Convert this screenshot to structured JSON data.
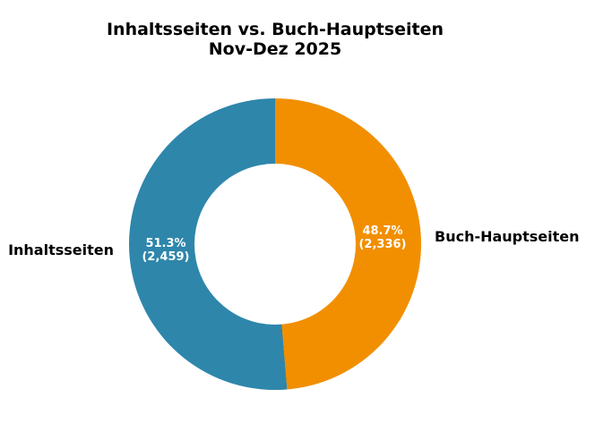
{
  "colors": {
    "background": "#ffffff",
    "title_text": "#000000",
    "slice_label_text": "#000000",
    "inner_value_text": "#ffffff"
  },
  "chart_data": {
    "type": "pie",
    "style": "donut",
    "title": "Inhaltsseiten vs. Buch-Hauptseiten",
    "subtitle": "Nov-Dez 2025",
    "start_angle_deg": 90,
    "direction": "counterclockwise",
    "legend": "none",
    "inner_radius_ratio": 0.55,
    "slices": [
      {
        "label": "Inhaltsseiten",
        "value": 2459,
        "pct": 51.3,
        "pct_label": "51.3%",
        "count_label": "(2,459)",
        "color": "#2E86AB"
      },
      {
        "label": "Buch-Hauptseiten",
        "value": 2336,
        "pct": 48.7,
        "pct_label": "48.7%",
        "count_label": "(2,336)",
        "color": "#F18F01"
      }
    ]
  }
}
